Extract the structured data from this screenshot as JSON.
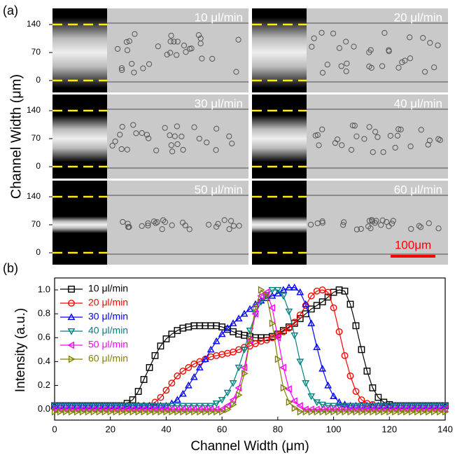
{
  "panel_a": {
    "label": "(a)",
    "ylabel": "Channel Width (μm)",
    "yticks": [
      0,
      70,
      140
    ],
    "panels": [
      "10 μl/min",
      "20 μl/min",
      "30 μl/min",
      "40 μl/min",
      "50 μl/min",
      "60 μl/min"
    ],
    "scale_bar": "100μm"
  },
  "panel_b_label": "(b)",
  "chart_data": {
    "type": "line",
    "xlabel": "Channel Width (μm)",
    "ylabel": "Intensity (a.u.)",
    "xlim": [
      0,
      140
    ],
    "ylim": [
      -0.09,
      1.1
    ],
    "xticks": [
      0,
      20,
      40,
      60,
      80,
      100,
      120,
      140
    ],
    "yticks": [
      {
        "value": 0,
        "label": "0.0"
      },
      {
        "value": 0.2,
        "label": "0.2"
      },
      {
        "value": 0.4,
        "label": "0.4"
      },
      {
        "value": 0.6,
        "label": "0.6"
      },
      {
        "value": 0.8,
        "label": "0.8"
      },
      {
        "value": 1,
        "label": "1.0"
      }
    ],
    "legend": "upper left",
    "x": [
      0,
      2,
      4,
      6,
      8,
      10,
      12,
      14,
      16,
      18,
      20,
      22,
      24,
      26,
      28,
      30,
      32,
      34,
      36,
      38,
      40,
      42,
      44,
      46,
      48,
      50,
      52,
      54,
      56,
      58,
      60,
      62,
      64,
      66,
      68,
      70,
      72,
      74,
      76,
      78,
      80,
      82,
      84,
      86,
      88,
      90,
      92,
      94,
      96,
      98,
      100,
      102,
      104,
      106,
      108,
      110,
      112,
      114,
      116,
      118,
      120,
      122,
      124,
      126,
      128,
      130,
      132,
      134,
      136,
      138,
      140
    ],
    "series": [
      {
        "name": "10 μl/min",
        "color": "#000000",
        "marker": "square",
        "values": [
          0.03,
          0.03,
          0.03,
          0.03,
          0.03,
          0.03,
          0.03,
          0.03,
          0.03,
          0.03,
          0.03,
          0.03,
          0.03,
          0.05,
          0.08,
          0.15,
          0.25,
          0.35,
          0.45,
          0.53,
          0.59,
          0.63,
          0.66,
          0.68,
          0.69,
          0.7,
          0.7,
          0.7,
          0.7,
          0.7,
          0.69,
          0.67,
          0.65,
          0.63,
          0.62,
          0.61,
          0.6,
          0.6,
          0.6,
          0.61,
          0.63,
          0.66,
          0.69,
          0.72,
          0.76,
          0.8,
          0.84,
          0.87,
          0.9,
          0.94,
          0.98,
          1.0,
          0.99,
          0.88,
          0.7,
          0.5,
          0.32,
          0.18,
          0.1,
          0.06,
          0.04,
          0.03,
          0.03,
          0.03,
          0.03,
          0.03,
          0.03,
          0.03,
          0.03,
          0.03,
          0.03
        ]
      },
      {
        "name": "20 μl/min",
        "color": "#ff0000",
        "marker": "circle",
        "values": [
          0.03,
          0.03,
          0.03,
          0.03,
          0.03,
          0.03,
          0.03,
          0.03,
          0.03,
          0.03,
          0.03,
          0.03,
          0.03,
          0.03,
          0.03,
          0.03,
          0.03,
          0.03,
          0.06,
          0.1,
          0.16,
          0.22,
          0.28,
          0.32,
          0.35,
          0.38,
          0.4,
          0.42,
          0.44,
          0.45,
          0.46,
          0.47,
          0.48,
          0.5,
          0.52,
          0.53,
          0.55,
          0.57,
          0.58,
          0.6,
          0.62,
          0.65,
          0.68,
          0.73,
          0.79,
          0.87,
          0.95,
          0.99,
          1.0,
          0.98,
          0.85,
          0.65,
          0.45,
          0.28,
          0.15,
          0.08,
          0.05,
          0.04,
          0.03,
          0.03,
          0.03,
          0.03,
          0.03,
          0.03,
          0.03,
          0.03,
          0.03,
          0.03,
          0.03,
          0.03,
          0.03
        ]
      },
      {
        "name": "30 μl/min",
        "color": "#0000ff",
        "marker": "triangle-up",
        "values": [
          0.03,
          0.03,
          0.03,
          0.03,
          0.03,
          0.03,
          0.03,
          0.03,
          0.03,
          0.03,
          0.03,
          0.03,
          0.03,
          0.03,
          0.03,
          0.03,
          0.03,
          0.03,
          0.03,
          0.03,
          0.03,
          0.05,
          0.08,
          0.13,
          0.2,
          0.27,
          0.35,
          0.42,
          0.5,
          0.57,
          0.63,
          0.68,
          0.72,
          0.76,
          0.8,
          0.84,
          0.88,
          0.91,
          0.93,
          0.95,
          0.97,
          1.0,
          1.02,
          1.02,
          0.98,
          0.88,
          0.72,
          0.52,
          0.34,
          0.2,
          0.11,
          0.06,
          0.04,
          0.03,
          0.03,
          0.03,
          0.03,
          0.03,
          0.03,
          0.03,
          0.03,
          0.03,
          0.03,
          0.03,
          0.03,
          0.03,
          0.03,
          0.03,
          0.03,
          0.03,
          0.03
        ]
      },
      {
        "name": "40 μl/min",
        "color": "#008080",
        "marker": "triangle-down",
        "values": [
          0.03,
          0.03,
          0.03,
          0.03,
          0.03,
          0.03,
          0.03,
          0.03,
          0.03,
          0.03,
          0.03,
          0.03,
          0.03,
          0.03,
          0.03,
          0.03,
          0.03,
          0.03,
          0.03,
          0.03,
          0.03,
          0.03,
          0.03,
          0.03,
          0.03,
          0.03,
          0.03,
          0.03,
          0.03,
          0.05,
          0.08,
          0.14,
          0.22,
          0.35,
          0.5,
          0.66,
          0.8,
          0.9,
          0.96,
          1.0,
          1.0,
          0.95,
          0.82,
          0.62,
          0.4,
          0.22,
          0.11,
          0.06,
          0.04,
          0.03,
          0.03,
          0.03,
          0.03,
          0.03,
          0.03,
          0.03,
          0.03,
          0.03,
          0.03,
          0.03,
          0.03,
          0.03,
          0.03,
          0.03,
          0.03,
          0.03,
          0.03,
          0.03,
          0.03,
          0.03,
          0.03
        ]
      },
      {
        "name": "50 μl/min",
        "color": "#ff00ff",
        "marker": "triangle-left",
        "values": [
          0,
          0,
          0,
          0,
          0,
          0,
          0,
          0,
          0,
          0,
          0,
          0,
          0,
          0,
          0,
          0,
          0,
          0,
          0,
          0,
          0,
          0,
          0,
          0,
          0,
          0,
          0,
          0,
          0,
          0,
          0,
          0.03,
          0.08,
          0.18,
          0.35,
          0.58,
          0.8,
          0.95,
          0.98,
          0.85,
          0.6,
          0.35,
          0.17,
          0.07,
          0.03,
          0,
          0,
          0,
          0,
          0,
          0,
          0,
          0,
          0,
          0,
          0,
          0,
          0,
          0,
          0,
          0,
          0,
          0,
          0,
          0,
          0,
          0,
          0,
          0,
          0,
          0
        ]
      },
      {
        "name": "60 μl/min",
        "color": "#808000",
        "marker": "triangle-right",
        "values": [
          -0.02,
          -0.02,
          -0.02,
          -0.02,
          -0.02,
          -0.02,
          -0.02,
          -0.02,
          -0.02,
          -0.02,
          -0.02,
          -0.02,
          -0.02,
          -0.02,
          -0.02,
          -0.02,
          -0.02,
          -0.02,
          -0.02,
          -0.02,
          -0.02,
          -0.02,
          -0.02,
          -0.02,
          -0.02,
          -0.02,
          -0.02,
          -0.02,
          -0.02,
          -0.02,
          -0.02,
          0,
          0.04,
          0.12,
          0.3,
          0.58,
          0.85,
          1.0,
          0.95,
          0.72,
          0.42,
          0.18,
          0.06,
          0.01,
          -0.02,
          -0.02,
          -0.02,
          -0.02,
          -0.02,
          -0.02,
          -0.02,
          -0.02,
          -0.02,
          -0.02,
          -0.02,
          -0.02,
          -0.02,
          -0.02,
          -0.02,
          -0.02,
          -0.02,
          -0.02,
          -0.02,
          -0.02,
          -0.02,
          -0.02,
          -0.02,
          -0.02,
          -0.02,
          -0.02,
          -0.02
        ]
      }
    ]
  }
}
